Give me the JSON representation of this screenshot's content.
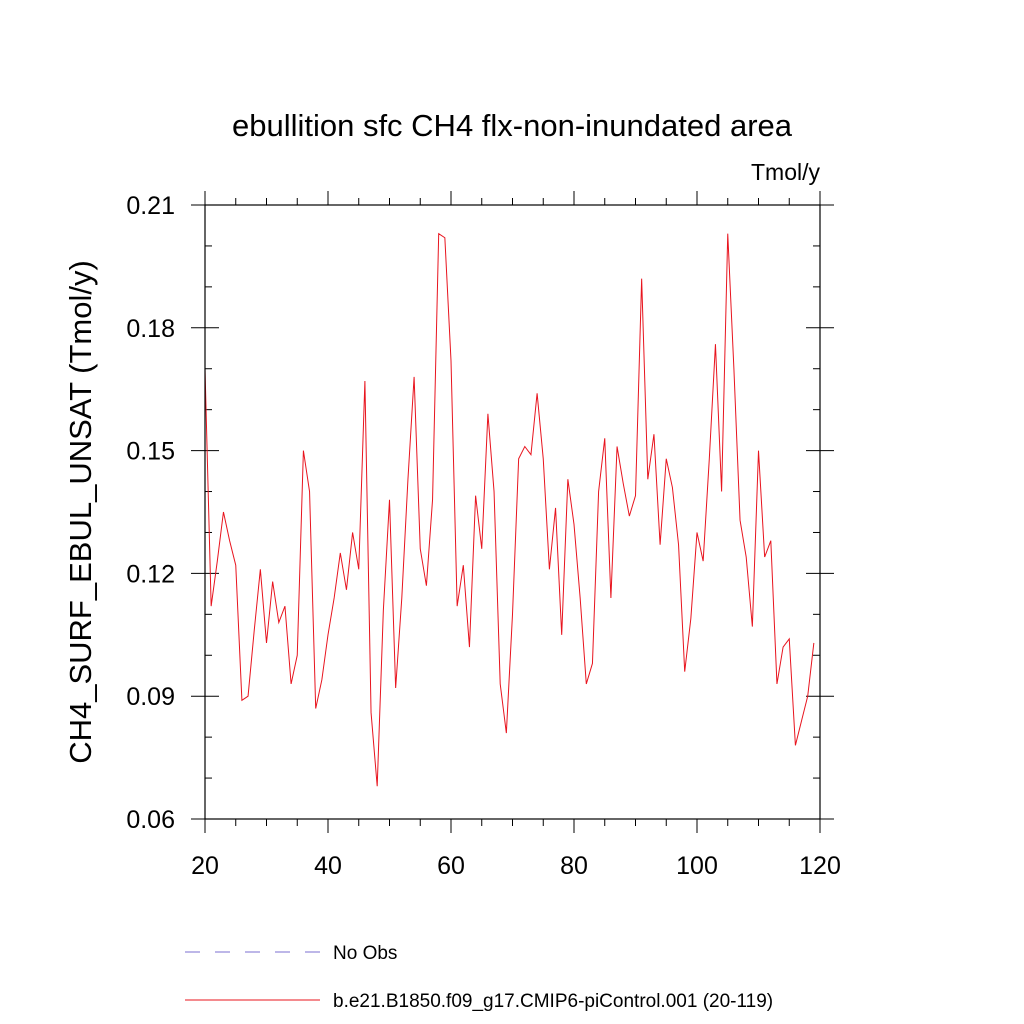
{
  "chart_data": {
    "type": "line",
    "title": "ebullition sfc CH4 flx-non-inundated area",
    "units_label": "Tmol/y",
    "ylabel": "CH4_SURF_EBUL_UNSAT  (Tmol/y)",
    "xlabel": "",
    "xlim": [
      20,
      120
    ],
    "ylim": [
      0.06,
      0.21
    ],
    "x_ticks": [
      20,
      40,
      60,
      80,
      100,
      120
    ],
    "x_tick_labels": [
      "20",
      "40",
      "60",
      "80",
      "100",
      "120"
    ],
    "x_minor_step": 5,
    "y_ticks": [
      0.06,
      0.09,
      0.12,
      0.15,
      0.18,
      0.21
    ],
    "y_tick_labels": [
      "0.06",
      "0.09",
      "0.12",
      "0.15",
      "0.18",
      "0.21"
    ],
    "y_minor_step": 0.01,
    "grid": false,
    "legend_position": "bottom",
    "series": [
      {
        "name": "No Obs",
        "style": "dashed",
        "color": "#7b6fd0",
        "x": [],
        "values": []
      },
      {
        "name": "b.e21.B1850.f09_g17.CMIP6-piControl.001 (20-119)",
        "style": "solid",
        "color": "#e8141e",
        "x": [
          20,
          21,
          22,
          23,
          24,
          25,
          26,
          27,
          28,
          29,
          30,
          31,
          32,
          33,
          34,
          35,
          36,
          37,
          38,
          39,
          40,
          41,
          42,
          43,
          44,
          45,
          46,
          47,
          48,
          49,
          50,
          51,
          52,
          53,
          54,
          55,
          56,
          57,
          58,
          59,
          60,
          61,
          62,
          63,
          64,
          65,
          66,
          67,
          68,
          69,
          70,
          71,
          72,
          73,
          74,
          75,
          76,
          77,
          78,
          79,
          80,
          81,
          82,
          83,
          84,
          85,
          86,
          87,
          88,
          89,
          90,
          91,
          92,
          93,
          94,
          95,
          96,
          97,
          98,
          99,
          100,
          101,
          102,
          103,
          104,
          105,
          106,
          107,
          108,
          109,
          110,
          111,
          112,
          113,
          114,
          115,
          116,
          117,
          118,
          119
        ],
        "values": [
          0.17,
          0.112,
          0.123,
          0.135,
          0.128,
          0.122,
          0.089,
          0.09,
          0.106,
          0.121,
          0.103,
          0.118,
          0.108,
          0.112,
          0.093,
          0.1,
          0.15,
          0.14,
          0.087,
          0.094,
          0.105,
          0.114,
          0.125,
          0.116,
          0.13,
          0.121,
          0.167,
          0.086,
          0.068,
          0.111,
          0.138,
          0.092,
          0.114,
          0.143,
          0.168,
          0.126,
          0.117,
          0.138,
          0.203,
          0.202,
          0.172,
          0.112,
          0.122,
          0.102,
          0.139,
          0.126,
          0.159,
          0.14,
          0.093,
          0.081,
          0.11,
          0.148,
          0.151,
          0.149,
          0.164,
          0.148,
          0.121,
          0.136,
          0.105,
          0.143,
          0.132,
          0.114,
          0.093,
          0.098,
          0.14,
          0.153,
          0.114,
          0.151,
          0.142,
          0.134,
          0.139,
          0.192,
          0.143,
          0.154,
          0.127,
          0.148,
          0.141,
          0.127,
          0.096,
          0.109,
          0.13,
          0.123,
          0.148,
          0.176,
          0.14,
          0.203,
          0.17,
          0.133,
          0.124,
          0.107,
          0.15,
          0.124,
          0.128,
          0.093,
          0.102,
          0.104,
          0.078,
          0.084,
          0.09,
          0.103
        ]
      }
    ]
  }
}
